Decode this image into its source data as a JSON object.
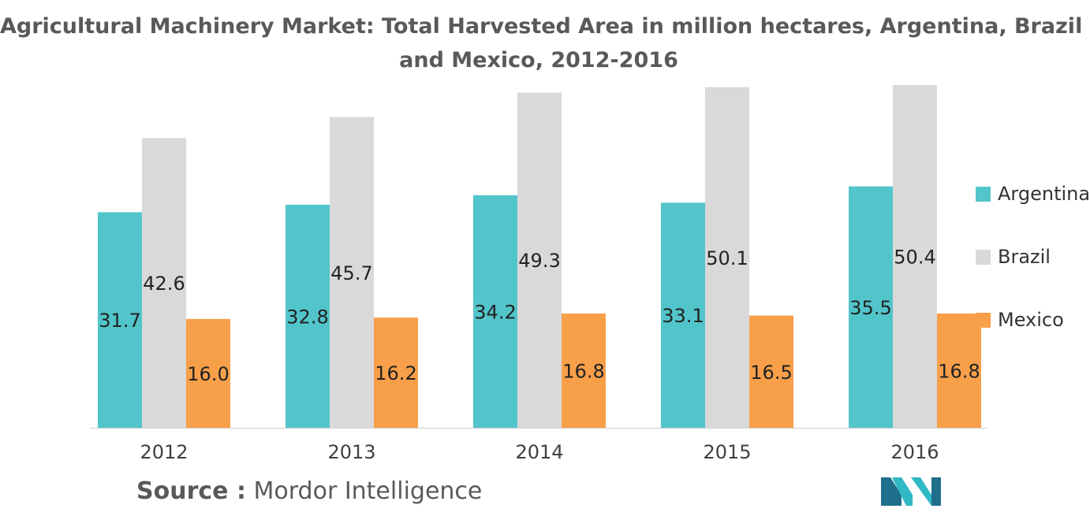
{
  "title": {
    "line1": "Agricultural Machinery Market: Total Harvested Area in million hectares, Argentina, Brazil",
    "line2": "and Mexico, 2012-2016"
  },
  "source": {
    "label": "Source :",
    "value": "Mordor Intelligence"
  },
  "colors": {
    "Argentina": "#52c5cb",
    "Brazil": "#d9d9d9",
    "Mexico": "#f89f4a",
    "logo_teal": "#2fb9c4",
    "logo_dark": "#1f6f8b"
  },
  "legend": [
    {
      "label": "Argentina"
    },
    {
      "label": "Brazil"
    },
    {
      "label": "Mexico"
    }
  ],
  "chart_data": {
    "type": "bar",
    "title": "Agricultural Machinery Market: Total Harvested Area in million hectares, Argentina, Brazil and Mexico, 2012-2016",
    "categories": [
      "2012",
      "2013",
      "2014",
      "2015",
      "2016"
    ],
    "series": [
      {
        "name": "Argentina",
        "values": [
          31.7,
          32.8,
          34.2,
          33.1,
          35.5
        ]
      },
      {
        "name": "Brazil",
        "values": [
          42.6,
          45.7,
          49.3,
          50.1,
          50.4
        ]
      },
      {
        "name": "Mexico",
        "values": [
          16.0,
          16.2,
          16.8,
          16.5,
          16.8
        ]
      }
    ],
    "value_labels": [
      [
        "31.7",
        "32.8",
        "34.2",
        "33.1",
        "35.5"
      ],
      [
        "42.6",
        "45.7",
        "49.3",
        "50.1",
        "50.4"
      ],
      [
        "16.0",
        "16.2",
        "16.8",
        "16.5",
        "16.8"
      ]
    ],
    "ylim": [
      0,
      50.4
    ],
    "grid": false,
    "legend_position": "right",
    "xlabel": "",
    "ylabel": ""
  }
}
